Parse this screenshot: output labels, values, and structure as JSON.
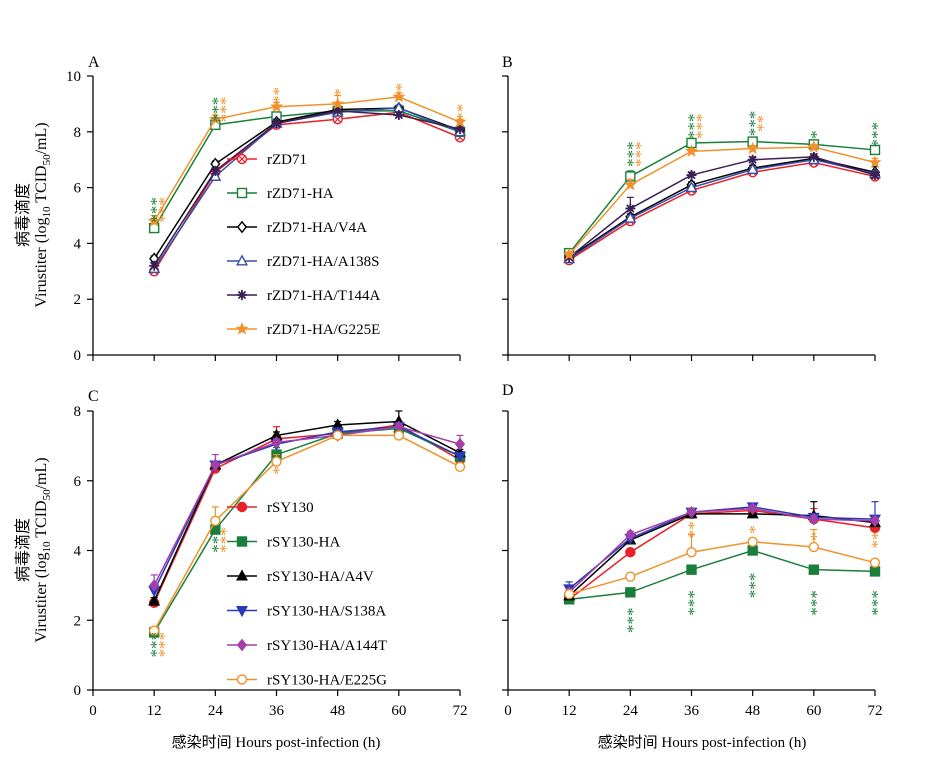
{
  "x_axis": {
    "label": "感染时间 Hours post-infection (h)",
    "ticks": [
      0,
      12,
      24,
      36,
      48,
      60,
      72
    ],
    "range": [
      0,
      72
    ]
  },
  "y_axis": {
    "label_cn": "病毒滴度",
    "label_prefix": "Virustiter (log",
    "label_sub10": "10",
    "label_mid": " TCID",
    "label_sub50": "50",
    "label_suffix": "/mL)"
  },
  "colors": {
    "red": "#e8202a",
    "green": "#1a7f3c",
    "black": "#000000",
    "blue": "#3850a8",
    "purple": "#3a1f54",
    "orange": "#f0922b",
    "magenta": "#a23fa8",
    "navy": "#2a39b8"
  },
  "chart_data": [
    {
      "panel": "A",
      "type": "line",
      "ylim": [
        0,
        10
      ],
      "yticks": [
        0,
        2,
        4,
        6,
        8,
        10
      ],
      "legend_position": "left-center",
      "x": [
        12,
        24,
        36,
        48,
        60,
        72
      ],
      "series": [
        {
          "name": "rZD71",
          "color": "red",
          "marker": "circle-x",
          "values": [
            3.0,
            6.55,
            8.25,
            8.45,
            8.7,
            7.8
          ],
          "err": [
            0.1,
            0.1,
            0.1,
            0.1,
            0.1,
            0.1
          ]
        },
        {
          "name": "rZD71-HA",
          "color": "green",
          "marker": "square-open",
          "values": [
            4.55,
            8.25,
            8.55,
            8.75,
            8.75,
            8.0
          ],
          "err": [
            0.15,
            0.1,
            0.1,
            0.1,
            0.1,
            0.1
          ]
        },
        {
          "name": "rZD71-HA/V4A",
          "color": "black",
          "marker": "diamond-open",
          "values": [
            3.45,
            6.85,
            8.35,
            8.8,
            8.85,
            8.05
          ],
          "err": [
            0.1,
            0.1,
            0.1,
            0.1,
            0.1,
            0.1
          ]
        },
        {
          "name": "rZD71-HA/A138S",
          "color": "blue",
          "marker": "triangle-open",
          "values": [
            3.1,
            6.4,
            8.3,
            8.7,
            8.85,
            8.0
          ],
          "err": [
            0.1,
            0.1,
            0.1,
            0.1,
            0.1,
            0.1
          ]
        },
        {
          "name": "rZD71-HA/T144A",
          "color": "purple",
          "marker": "star",
          "values": [
            3.2,
            6.6,
            8.3,
            8.75,
            8.6,
            8.1
          ],
          "err": [
            0.1,
            0.1,
            0.1,
            0.1,
            0.1,
            0.1
          ]
        },
        {
          "name": "rZD71-HA/G225E",
          "color": "orange",
          "marker": "star-filled",
          "values": [
            4.8,
            8.45,
            8.9,
            9.0,
            9.25,
            8.35
          ],
          "err": [
            0.2,
            0.15,
            0.15,
            0.3,
            0.15,
            0.1
          ]
        }
      ],
      "annotations": [
        {
          "x": 12,
          "y": 5.2,
          "text": "***",
          "color": "green"
        },
        {
          "x": 12,
          "y": 5.2,
          "text": "***",
          "color": "orange"
        },
        {
          "x": 24,
          "y": 8.8,
          "text": "***",
          "color": "green"
        },
        {
          "x": 24,
          "y": 8.8,
          "text": "***",
          "color": "orange"
        },
        {
          "x": 36,
          "y": 9.3,
          "text": "**",
          "color": "orange"
        },
        {
          "x": 48,
          "y": 9.4,
          "text": "*",
          "color": "orange"
        },
        {
          "x": 60,
          "y": 9.6,
          "text": "*",
          "color": "orange"
        },
        {
          "x": 72,
          "y": 8.7,
          "text": "**",
          "color": "orange"
        }
      ]
    },
    {
      "panel": "B",
      "type": "line",
      "ylim": [
        0,
        10
      ],
      "yticks": [],
      "x": [
        12,
        24,
        36,
        48,
        60,
        72
      ],
      "series": [
        {
          "name": "rZD71",
          "color": "red",
          "marker": "circle-x",
          "values": [
            3.4,
            4.8,
            5.9,
            6.55,
            6.9,
            6.4
          ],
          "err": [
            0.1,
            0.1,
            0.1,
            0.1,
            0.1,
            0.1
          ]
        },
        {
          "name": "rZD71-HA",
          "color": "green",
          "marker": "square-open",
          "values": [
            3.65,
            6.4,
            7.6,
            7.65,
            7.55,
            7.35
          ],
          "err": [
            0.1,
            0.2,
            0.1,
            0.1,
            0.15,
            0.1
          ]
        },
        {
          "name": "rZD71-HA/V4A",
          "color": "black",
          "marker": "diamond-open",
          "values": [
            3.5,
            4.95,
            6.1,
            6.7,
            7.05,
            6.55
          ],
          "err": [
            0.1,
            0.1,
            0.1,
            0.1,
            0.1,
            0.2
          ]
        },
        {
          "name": "rZD71-HA/A138S",
          "color": "blue",
          "marker": "triangle-open",
          "values": [
            3.45,
            4.9,
            6.0,
            6.65,
            7.0,
            6.5
          ],
          "err": [
            0.1,
            0.1,
            0.1,
            0.1,
            0.1,
            0.1
          ]
        },
        {
          "name": "rZD71-HA/T144A",
          "color": "purple",
          "marker": "star",
          "values": [
            3.5,
            5.25,
            6.45,
            7.0,
            7.1,
            6.45
          ],
          "err": [
            0.1,
            0.4,
            0.1,
            0.1,
            0.1,
            0.1
          ]
        },
        {
          "name": "rZD71-HA/G225E",
          "color": "orange",
          "marker": "star-filled",
          "values": [
            3.6,
            6.1,
            7.3,
            7.4,
            7.45,
            6.9
          ],
          "err": [
            0.1,
            0.2,
            0.1,
            0.1,
            0.1,
            0.15
          ]
        }
      ],
      "annotations": [
        {
          "x": 24,
          "y": 7.2,
          "text": "***",
          "color": "green"
        },
        {
          "x": 24,
          "y": 7.2,
          "text": "***",
          "color": "orange"
        },
        {
          "x": 36,
          "y": 8.2,
          "text": "***",
          "color": "green"
        },
        {
          "x": 36,
          "y": 8.2,
          "text": "***",
          "color": "orange"
        },
        {
          "x": 48,
          "y": 8.3,
          "text": "***",
          "color": "green"
        },
        {
          "x": 48,
          "y": 8.3,
          "text": "**",
          "color": "orange"
        },
        {
          "x": 60,
          "y": 7.9,
          "text": "*",
          "color": "green"
        },
        {
          "x": 72,
          "y": 7.9,
          "text": "***",
          "color": "green"
        }
      ]
    },
    {
      "panel": "C",
      "type": "line",
      "ylim": [
        0,
        8
      ],
      "yticks": [
        0,
        2,
        4,
        6,
        8
      ],
      "legend_position": "right-center",
      "x": [
        12,
        24,
        36,
        48,
        60,
        72
      ],
      "series": [
        {
          "name": "rSY130",
          "color": "red",
          "marker": "circle-filled",
          "values": [
            2.5,
            6.35,
            7.2,
            7.35,
            7.6,
            6.6
          ],
          "err": [
            0.1,
            0.1,
            0.35,
            0.1,
            0.1,
            0.1
          ]
        },
        {
          "name": "rSY130-HA",
          "color": "green",
          "marker": "square-filled",
          "values": [
            1.65,
            4.6,
            6.75,
            7.35,
            7.5,
            6.7
          ],
          "err": [
            0.1,
            0.1,
            0.2,
            0.1,
            0.1,
            0.1
          ]
        },
        {
          "name": "rSY130-HA/A4V",
          "color": "black",
          "marker": "triangle-filled",
          "values": [
            2.55,
            6.45,
            7.3,
            7.6,
            7.7,
            6.8
          ],
          "err": [
            0.1,
            0.1,
            0.1,
            0.1,
            0.3,
            0.1
          ]
        },
        {
          "name": "rSY130-HA/S138A",
          "color": "navy",
          "marker": "triangle-down-filled",
          "values": [
            2.85,
            6.45,
            7.05,
            7.4,
            7.55,
            6.7
          ],
          "err": [
            0.1,
            0.1,
            0.1,
            0.1,
            0.1,
            0.1
          ]
        },
        {
          "name": "rSY130-HA/A144T",
          "color": "magenta",
          "marker": "diamond-filled",
          "values": [
            3.0,
            6.45,
            7.1,
            7.3,
            7.55,
            7.05
          ],
          "err": [
            0.3,
            0.3,
            0.1,
            0.1,
            0.1,
            0.25
          ]
        },
        {
          "name": "rSY130-HA/E225G",
          "color": "orange",
          "marker": "circle-open",
          "values": [
            1.7,
            4.85,
            6.55,
            7.3,
            7.3,
            6.4
          ],
          "err": [
            0.1,
            0.4,
            0.2,
            0.1,
            0.1,
            0.1
          ]
        }
      ],
      "annotations": [
        {
          "x": 12,
          "y": 1.3,
          "text": "***",
          "color": "green"
        },
        {
          "x": 12,
          "y": 1.3,
          "text": "***",
          "color": "orange"
        },
        {
          "x": 24,
          "y": 4.3,
          "text": "***",
          "color": "green"
        },
        {
          "x": 24,
          "y": 4.3,
          "text": "***",
          "color": "orange"
        },
        {
          "x": 36,
          "y": 6.3,
          "text": "*",
          "color": "orange"
        }
      ]
    },
    {
      "panel": "D",
      "type": "line",
      "ylim": [
        0,
        8
      ],
      "yticks": [],
      "x": [
        12,
        24,
        36,
        48,
        60,
        72
      ],
      "series": [
        {
          "name": "rSY130",
          "color": "red",
          "marker": "circle-filled",
          "values": [
            2.6,
            3.95,
            5.05,
            5.15,
            4.9,
            4.65
          ],
          "err": [
            0.1,
            0.1,
            0.1,
            0.2,
            0.3,
            0.2
          ]
        },
        {
          "name": "rSY130-HA",
          "color": "green",
          "marker": "square-filled",
          "values": [
            2.6,
            2.8,
            3.45,
            4.0,
            3.45,
            3.4
          ],
          "err": [
            0.1,
            0.1,
            0.1,
            0.1,
            0.1,
            0.1
          ]
        },
        {
          "name": "rSY130-HA/A4V",
          "color": "black",
          "marker": "triangle-filled",
          "values": [
            2.7,
            4.3,
            5.05,
            5.05,
            5.0,
            4.8
          ],
          "err": [
            0.1,
            0.1,
            0.1,
            0.1,
            0.4,
            0.1
          ]
        },
        {
          "name": "rSY130-HA/S138A",
          "color": "navy",
          "marker": "triangle-down-filled",
          "values": [
            2.9,
            4.35,
            5.1,
            5.25,
            4.95,
            4.9
          ],
          "err": [
            0.2,
            0.1,
            0.1,
            0.1,
            0.1,
            0.5
          ]
        },
        {
          "name": "rSY130-HA/A144T",
          "color": "magenta",
          "marker": "diamond-filled",
          "values": [
            2.8,
            4.45,
            5.1,
            5.2,
            4.9,
            4.85
          ],
          "err": [
            0.1,
            0.1,
            0.1,
            0.1,
            0.1,
            0.1
          ]
        },
        {
          "name": "rSY130-HA/E225G",
          "color": "orange",
          "marker": "circle-open",
          "values": [
            2.75,
            3.25,
            3.95,
            4.25,
            4.1,
            3.65
          ],
          "err": [
            0.1,
            0.1,
            0.5,
            0.1,
            0.5,
            0.1
          ]
        }
      ],
      "annotations": [
        {
          "x": 24,
          "y": 2.0,
          "text": "***",
          "color": "green"
        },
        {
          "x": 36,
          "y": 2.5,
          "text": "***",
          "color": "green"
        },
        {
          "x": 36,
          "y": 4.6,
          "text": "**",
          "color": "orange"
        },
        {
          "x": 48,
          "y": 3.0,
          "text": "***",
          "color": "green"
        },
        {
          "x": 48,
          "y": 4.6,
          "text": "*",
          "color": "orange"
        },
        {
          "x": 60,
          "y": 2.5,
          "text": "***",
          "color": "green"
        },
        {
          "x": 60,
          "y": 4.4,
          "text": "*",
          "color": "orange"
        },
        {
          "x": 72,
          "y": 2.5,
          "text": "***",
          "color": "green"
        },
        {
          "x": 72,
          "y": 4.3,
          "text": "**",
          "color": "orange"
        }
      ]
    }
  ]
}
